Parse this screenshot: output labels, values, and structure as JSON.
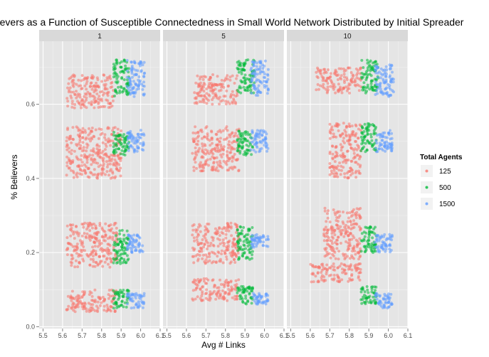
{
  "chart_data": {
    "type": "scatter",
    "title": "f Believers as a Function of Susceptible Connectedness in Small World Network Distributed by Initial Spreader",
    "xlabel": "Avg # Links",
    "ylabel": "% Believers",
    "facets": [
      "1",
      "5",
      "10"
    ],
    "xlim": [
      5.48,
      6.1
    ],
    "ylim": [
      -0.005,
      0.77
    ],
    "x_ticks": [
      "5.5",
      "5.6",
      "5.7",
      "5.8",
      "5.9",
      "6.0",
      "6.1"
    ],
    "x_tick_values": [
      5.5,
      5.6,
      5.7,
      5.8,
      5.9,
      6.0,
      6.1
    ],
    "y_ticks": [
      "0.0",
      "0.2",
      "0.4",
      "0.6"
    ],
    "y_tick_values": [
      0.0,
      0.2,
      0.4,
      0.6
    ],
    "legend": {
      "title": "Total Agents",
      "position": "right"
    },
    "series": [
      {
        "name": "125",
        "color": "#F8766D",
        "clusters": [
          {
            "facet": "1",
            "x_range": [
              5.62,
              5.86
            ],
            "y_range": [
              0.59,
              0.68
            ]
          },
          {
            "facet": "1",
            "x_range": [
              5.62,
              5.9
            ],
            "y_range": [
              0.4,
              0.54
            ]
          },
          {
            "facet": "1",
            "x_range": [
              5.62,
              5.88
            ],
            "y_range": [
              0.16,
              0.28
            ]
          },
          {
            "facet": "1",
            "x_range": [
              5.62,
              5.88
            ],
            "y_range": [
              0.04,
              0.1
            ]
          },
          {
            "facet": "5",
            "x_range": [
              5.64,
              5.86
            ],
            "y_range": [
              0.6,
              0.68
            ]
          },
          {
            "facet": "5",
            "x_range": [
              5.63,
              5.87
            ],
            "y_range": [
              0.42,
              0.54
            ]
          },
          {
            "facet": "5",
            "x_range": [
              5.63,
              5.87
            ],
            "y_range": [
              0.17,
              0.28
            ]
          },
          {
            "facet": "5",
            "x_range": [
              5.63,
              5.87
            ],
            "y_range": [
              0.07,
              0.13
            ]
          },
          {
            "facet": "10",
            "x_range": [
              5.63,
              5.86
            ],
            "y_range": [
              0.63,
              0.7
            ]
          },
          {
            "facet": "10",
            "x_range": [
              5.7,
              5.86
            ],
            "y_range": [
              0.4,
              0.55
            ]
          },
          {
            "facet": "10",
            "x_range": [
              5.67,
              5.86
            ],
            "y_range": [
              0.18,
              0.32
            ]
          },
          {
            "facet": "10",
            "x_range": [
              5.6,
              5.86
            ],
            "y_range": [
              0.12,
              0.17
            ]
          }
        ]
      },
      {
        "name": "500",
        "color": "#00BA38",
        "clusters": [
          {
            "facet": "1",
            "x_range": [
              5.86,
              5.94
            ],
            "y_range": [
              0.62,
              0.72
            ]
          },
          {
            "facet": "1",
            "x_range": [
              5.86,
              5.94
            ],
            "y_range": [
              0.46,
              0.53
            ]
          },
          {
            "facet": "1",
            "x_range": [
              5.86,
              5.94
            ],
            "y_range": [
              0.17,
              0.26
            ]
          },
          {
            "facet": "1",
            "x_range": [
              5.86,
              5.94
            ],
            "y_range": [
              0.05,
              0.1
            ]
          },
          {
            "facet": "5",
            "x_range": [
              5.86,
              5.95
            ],
            "y_range": [
              0.63,
              0.72
            ]
          },
          {
            "facet": "5",
            "x_range": [
              5.86,
              5.94
            ],
            "y_range": [
              0.46,
              0.53
            ]
          },
          {
            "facet": "5",
            "x_range": [
              5.86,
              5.94
            ],
            "y_range": [
              0.18,
              0.27
            ]
          },
          {
            "facet": "5",
            "x_range": [
              5.86,
              5.94
            ],
            "y_range": [
              0.06,
              0.11
            ]
          },
          {
            "facet": "10",
            "x_range": [
              5.86,
              5.95
            ],
            "y_range": [
              0.63,
              0.72
            ]
          },
          {
            "facet": "10",
            "x_range": [
              5.86,
              5.94
            ],
            "y_range": [
              0.47,
              0.55
            ]
          },
          {
            "facet": "10",
            "x_range": [
              5.86,
              5.94
            ],
            "y_range": [
              0.2,
              0.27
            ]
          },
          {
            "facet": "10",
            "x_range": [
              5.86,
              5.94
            ],
            "y_range": [
              0.06,
              0.11
            ]
          }
        ]
      },
      {
        "name": "1500",
        "color": "#619CFF",
        "clusters": [
          {
            "facet": "1",
            "x_range": [
              5.93,
              6.02
            ],
            "y_range": [
              0.62,
              0.72
            ]
          },
          {
            "facet": "1",
            "x_range": [
              5.93,
              6.02
            ],
            "y_range": [
              0.47,
              0.53
            ]
          },
          {
            "facet": "1",
            "x_range": [
              5.93,
              6.02
            ],
            "y_range": [
              0.2,
              0.25
            ]
          },
          {
            "facet": "1",
            "x_range": [
              5.93,
              6.02
            ],
            "y_range": [
              0.05,
              0.09
            ]
          },
          {
            "facet": "5",
            "x_range": [
              5.93,
              6.02
            ],
            "y_range": [
              0.62,
              0.72
            ]
          },
          {
            "facet": "5",
            "x_range": [
              5.93,
              6.02
            ],
            "y_range": [
              0.47,
              0.53
            ]
          },
          {
            "facet": "5",
            "x_range": [
              5.93,
              6.02
            ],
            "y_range": [
              0.21,
              0.25
            ]
          },
          {
            "facet": "5",
            "x_range": [
              5.93,
              6.02
            ],
            "y_range": [
              0.06,
              0.09
            ]
          },
          {
            "facet": "10",
            "x_range": [
              5.93,
              6.03
            ],
            "y_range": [
              0.62,
              0.71
            ]
          },
          {
            "facet": "10",
            "x_range": [
              5.93,
              6.02
            ],
            "y_range": [
              0.47,
              0.53
            ]
          },
          {
            "facet": "10",
            "x_range": [
              5.93,
              6.02
            ],
            "y_range": [
              0.2,
              0.25
            ]
          },
          {
            "facet": "10",
            "x_range": [
              5.93,
              6.02
            ],
            "y_range": [
              0.05,
              0.09
            ]
          }
        ]
      }
    ]
  }
}
